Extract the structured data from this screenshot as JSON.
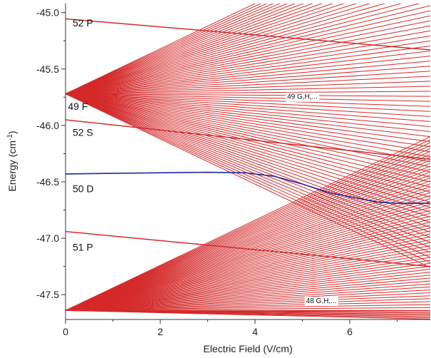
{
  "chart_data": {
    "type": "line",
    "title": "",
    "xlabel": "Electric Field (V/cm)",
    "ylabel": "Energy (cm",
    "ylabel_superscript": "-1",
    "ylabel_suffix": ")",
    "xlim": [
      0,
      7.7
    ],
    "ylim": [
      -47.72,
      -44.92
    ],
    "xticks": [
      0,
      2,
      4,
      6
    ],
    "xtick_labels": [
      "0",
      "2",
      "4",
      "6"
    ],
    "yticks": [
      -45.0,
      -45.5,
      -46.0,
      -46.5,
      -47.0,
      -47.5
    ],
    "ytick_labels": [
      "-45.0",
      "-45.5",
      "-46.0",
      "-46.5",
      "-47.0",
      "-47.5"
    ],
    "grid": false,
    "colors": {
      "manifold": "#d42a2a",
      "highlight": "#1c2a9a",
      "axis": "#333333"
    },
    "state_labels": [
      {
        "text": "52 P",
        "x": 0.15,
        "y": -45.09
      },
      {
        "text": "49 F",
        "x": 0.05,
        "y": -45.83
      },
      {
        "text": "52 S",
        "x": 0.15,
        "y": -46.06
      },
      {
        "text": "50 D",
        "x": 0.15,
        "y": -46.56
      },
      {
        "text": "51 P",
        "x": 0.15,
        "y": -47.08
      }
    ],
    "manifold_labels": [
      {
        "text": "49 G,H,...",
        "x": 5.0,
        "y": -45.74
      },
      {
        "text": "48 G,H,...",
        "x": 5.4,
        "y": -47.55
      }
    ],
    "series": [
      {
        "kind": "line",
        "highlight": false,
        "x": [
          0,
          7.7
        ],
        "y": [
          -45.055,
          -45.33
        ]
      },
      {
        "kind": "line",
        "highlight": false,
        "x": [
          0,
          7.7
        ],
        "y": [
          -45.95,
          -46.3
        ]
      },
      {
        "kind": "line",
        "highlight": false,
        "x": [
          0,
          7.7
        ],
        "y": [
          -46.94,
          -47.25
        ]
      },
      {
        "kind": "curve",
        "highlight": true,
        "x": [
          0,
          1,
          2,
          3,
          3.8,
          4.4,
          5.0,
          5.6,
          6.1,
          6.6,
          7.0,
          7.7
        ],
        "y": [
          -46.43,
          -46.425,
          -46.42,
          -46.415,
          -46.42,
          -46.45,
          -46.52,
          -46.6,
          -46.64,
          -46.68,
          -46.69,
          -46.69
        ]
      },
      {
        "kind": "fan",
        "highlight": false,
        "x0": 0,
        "y0": -45.72,
        "count": 70,
        "slope_min": -0.2,
        "slope_max": 0.2,
        "x_end": 7.7
      },
      {
        "kind": "fan",
        "highlight": false,
        "x0": 0,
        "y0": -47.64,
        "count": 60,
        "slope_min": 0.0,
        "slope_max": 0.2,
        "x_end": 7.7
      },
      {
        "kind": "fan",
        "highlight": false,
        "x0": 0,
        "y0": -47.64,
        "count": 8,
        "slope_min": -0.01,
        "slope_max": 0.0,
        "x_end": 7.7
      }
    ]
  }
}
